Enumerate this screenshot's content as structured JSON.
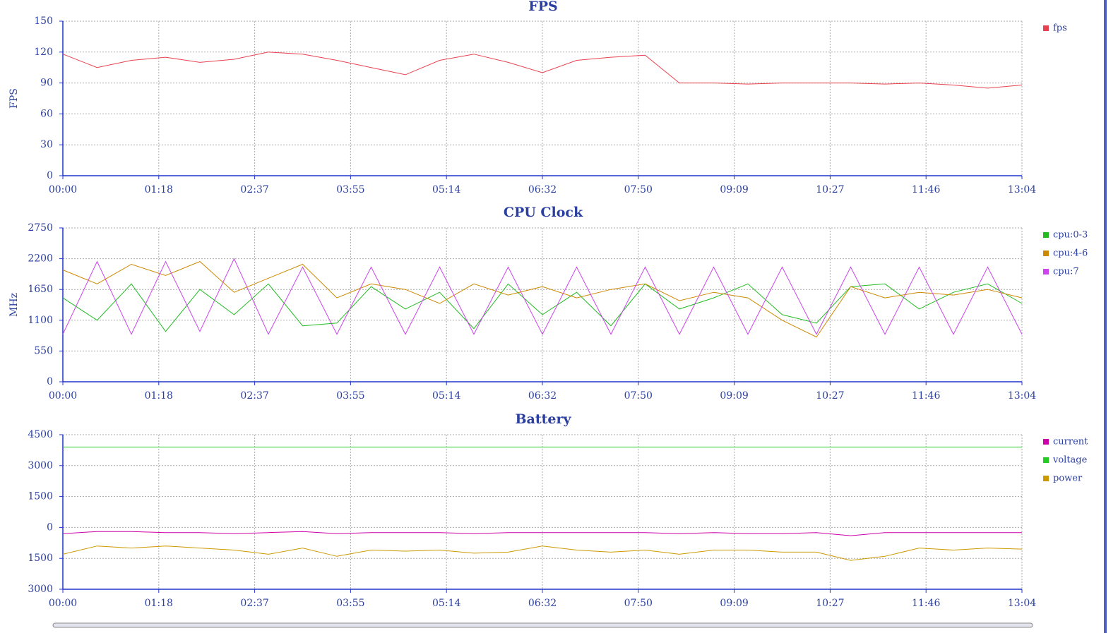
{
  "chart_data": [
    {
      "type": "line",
      "title": "FPS",
      "y_label": "FPS",
      "x": [
        0,
        28,
        56,
        84,
        112,
        140,
        168,
        196,
        224,
        252,
        280,
        308,
        336,
        364,
        392,
        420,
        448,
        476,
        504,
        532,
        560,
        588,
        616,
        644,
        672,
        700,
        728,
        756,
        784
      ],
      "series": [
        {
          "name": "fps",
          "color": "#e8414f",
          "values": [
            118,
            105,
            112,
            115,
            110,
            113,
            120,
            118,
            112,
            105,
            98,
            112,
            118,
            110,
            100,
            112,
            115,
            117,
            90,
            90,
            89,
            90,
            90,
            90,
            89,
            90,
            88,
            85,
            88
          ]
        }
      ],
      "xlim": [
        0,
        784
      ],
      "xticks": [
        {
          "value": 0,
          "label": "00:00"
        },
        {
          "value": 78.4,
          "label": "01:18"
        },
        {
          "value": 156.8,
          "label": "02:37"
        },
        {
          "value": 235.2,
          "label": "03:55"
        },
        {
          "value": 313.6,
          "label": "05:14"
        },
        {
          "value": 392,
          "label": "06:32"
        },
        {
          "value": 470.4,
          "label": "07:50"
        },
        {
          "value": 548.8,
          "label": "09:09"
        },
        {
          "value": 627.2,
          "label": "10:27"
        },
        {
          "value": 705.6,
          "label": "11:46"
        },
        {
          "value": 784,
          "label": "13:04"
        }
      ],
      "ylim": [
        0,
        150
      ],
      "yticks": [
        0,
        30,
        60,
        90,
        120,
        150
      ],
      "grid": true
    },
    {
      "type": "line",
      "title": "CPU Clock",
      "y_label": "MHz",
      "x": [
        0,
        28,
        56,
        84,
        112,
        140,
        168,
        196,
        224,
        252,
        280,
        308,
        336,
        364,
        392,
        420,
        448,
        476,
        504,
        532,
        560,
        588,
        616,
        644,
        672,
        700,
        728,
        756,
        784
      ],
      "series": [
        {
          "name": "cpu:0-3",
          "color": "#22bb22",
          "values": [
            1500,
            1100,
            1750,
            900,
            1650,
            1200,
            1750,
            1000,
            1050,
            1700,
            1300,
            1600,
            950,
            1750,
            1200,
            1600,
            1000,
            1750,
            1300,
            1500,
            1750,
            1200,
            1050,
            1700,
            1750,
            1300,
            1600,
            1750,
            1400
          ]
        },
        {
          "name": "cpu:4-6",
          "color": "#cc8800",
          "values": [
            2000,
            1750,
            2100,
            1900,
            2150,
            1600,
            1850,
            2100,
            1500,
            1750,
            1650,
            1400,
            1750,
            1550,
            1700,
            1500,
            1650,
            1750,
            1450,
            1600,
            1500,
            1100,
            800,
            1700,
            1500,
            1600,
            1550,
            1650,
            1500
          ]
        },
        {
          "name": "cpu:7",
          "color": "#cc44ee",
          "values": [
            850,
            2150,
            850,
            2150,
            900,
            2200,
            850,
            2050,
            850,
            2050,
            850,
            2050,
            850,
            2050,
            850,
            2050,
            850,
            2050,
            850,
            2050,
            850,
            2050,
            850,
            2050,
            850,
            2050,
            850,
            2050,
            850
          ]
        }
      ],
      "xlim": [
        0,
        784
      ],
      "xticks": [
        {
          "value": 0,
          "label": "00:00"
        },
        {
          "value": 78.4,
          "label": "01:18"
        },
        {
          "value": 156.8,
          "label": "02:37"
        },
        {
          "value": 235.2,
          "label": "03:55"
        },
        {
          "value": 313.6,
          "label": "05:14"
        },
        {
          "value": 392,
          "label": "06:32"
        },
        {
          "value": 470.4,
          "label": "07:50"
        },
        {
          "value": 548.8,
          "label": "09:09"
        },
        {
          "value": 627.2,
          "label": "10:27"
        },
        {
          "value": 705.6,
          "label": "11:46"
        },
        {
          "value": 784,
          "label": "13:04"
        }
      ],
      "ylim": [
        0,
        2750
      ],
      "yticks": [
        0,
        550,
        1100,
        1650,
        2200,
        2750
      ],
      "grid": true
    },
    {
      "type": "line",
      "title": "Battery",
      "x": [
        0,
        28,
        56,
        84,
        112,
        140,
        168,
        196,
        224,
        252,
        280,
        308,
        336,
        364,
        392,
        420,
        448,
        476,
        504,
        532,
        560,
        588,
        616,
        644,
        672,
        700,
        728,
        756,
        784
      ],
      "series": [
        {
          "name": "current",
          "color": "#cc00aa",
          "values": [
            -300,
            -200,
            -200,
            -250,
            -250,
            -300,
            -250,
            -200,
            -300,
            -250,
            -250,
            -250,
            -300,
            -250,
            -250,
            -250,
            -250,
            -250,
            -300,
            -250,
            -300,
            -300,
            -250,
            -400,
            -250,
            -250,
            -250,
            -250,
            -250
          ]
        },
        {
          "name": "voltage",
          "color": "#22cc22",
          "values": [
            3900,
            3900,
            3900,
            3900,
            3900,
            3900,
            3900,
            3900,
            3900,
            3900,
            3900,
            3900,
            3900,
            3900,
            3900,
            3900,
            3900,
            3900,
            3900,
            3900,
            3900,
            3900,
            3900,
            3900,
            3900,
            3900,
            3900,
            3900,
            3900
          ]
        },
        {
          "name": "power",
          "color": "#cc9900",
          "values": [
            -1300,
            -900,
            -1000,
            -900,
            -1000,
            -1100,
            -1300,
            -1000,
            -1400,
            -1100,
            -1150,
            -1100,
            -1250,
            -1200,
            -900,
            -1100,
            -1200,
            -1100,
            -1300,
            -1100,
            -1100,
            -1200,
            -1200,
            -1600,
            -1400,
            -1000,
            -1100,
            -1000,
            -1050
          ]
        }
      ],
      "xlim": [
        0,
        784
      ],
      "xticks": [
        {
          "value": 0,
          "label": "00:00"
        },
        {
          "value": 78.4,
          "label": "01:18"
        },
        {
          "value": 156.8,
          "label": "02:37"
        },
        {
          "value": 235.2,
          "label": "03:55"
        },
        {
          "value": 313.6,
          "label": "05:14"
        },
        {
          "value": 392,
          "label": "06:32"
        },
        {
          "value": 470.4,
          "label": "07:50"
        },
        {
          "value": 548.8,
          "label": "09:09"
        },
        {
          "value": 627.2,
          "label": "10:27"
        },
        {
          "value": 705.6,
          "label": "11:46"
        },
        {
          "value": 784,
          "label": "13:04"
        }
      ],
      "ylim": [
        -3000,
        4500
      ],
      "yticks": [
        {
          "value": -3000,
          "label": "3000"
        },
        {
          "value": -1500,
          "label": "1500"
        },
        0,
        1500,
        3000,
        4500
      ],
      "grid": true
    }
  ]
}
